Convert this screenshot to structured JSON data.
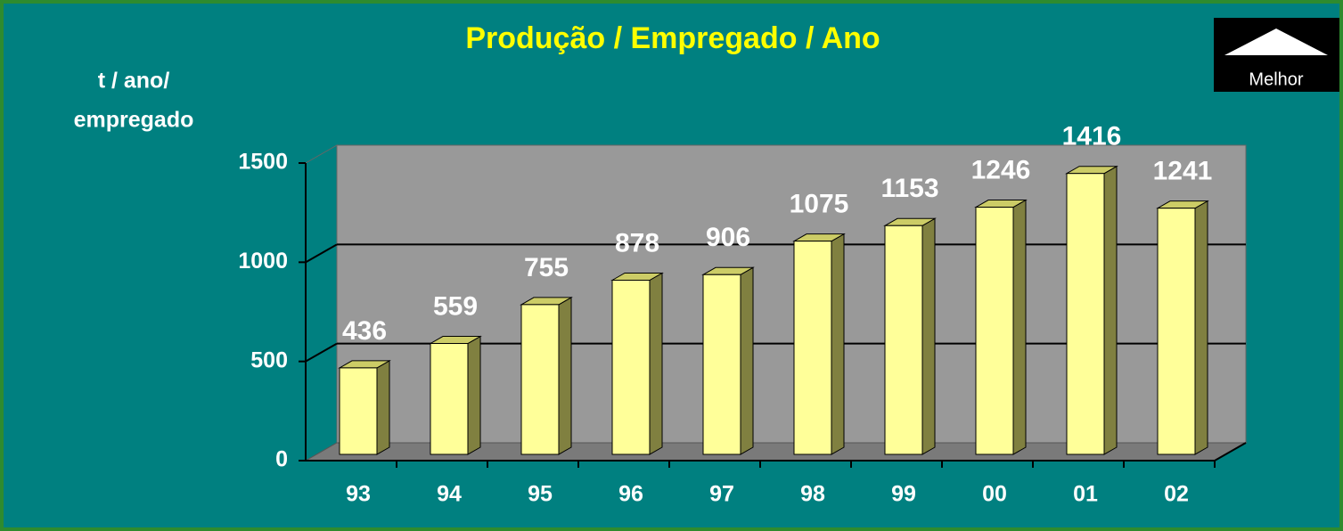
{
  "chart_data": {
    "type": "bar3d",
    "title": "Produção / Empregado / Ano",
    "y_label_lines": [
      "t / ano/",
      "empregado"
    ],
    "annotation": "Melhor",
    "categories": [
      "93",
      "94",
      "95",
      "96",
      "97",
      "98",
      "99",
      "00",
      "01",
      "02"
    ],
    "values": [
      436,
      559,
      755,
      878,
      906,
      1075,
      1153,
      1246,
      1416,
      1241
    ],
    "color": "#ffff99",
    "ylim": [
      0,
      1500
    ],
    "yticks": [
      0,
      500,
      1000,
      1500
    ],
    "grid": true
  }
}
